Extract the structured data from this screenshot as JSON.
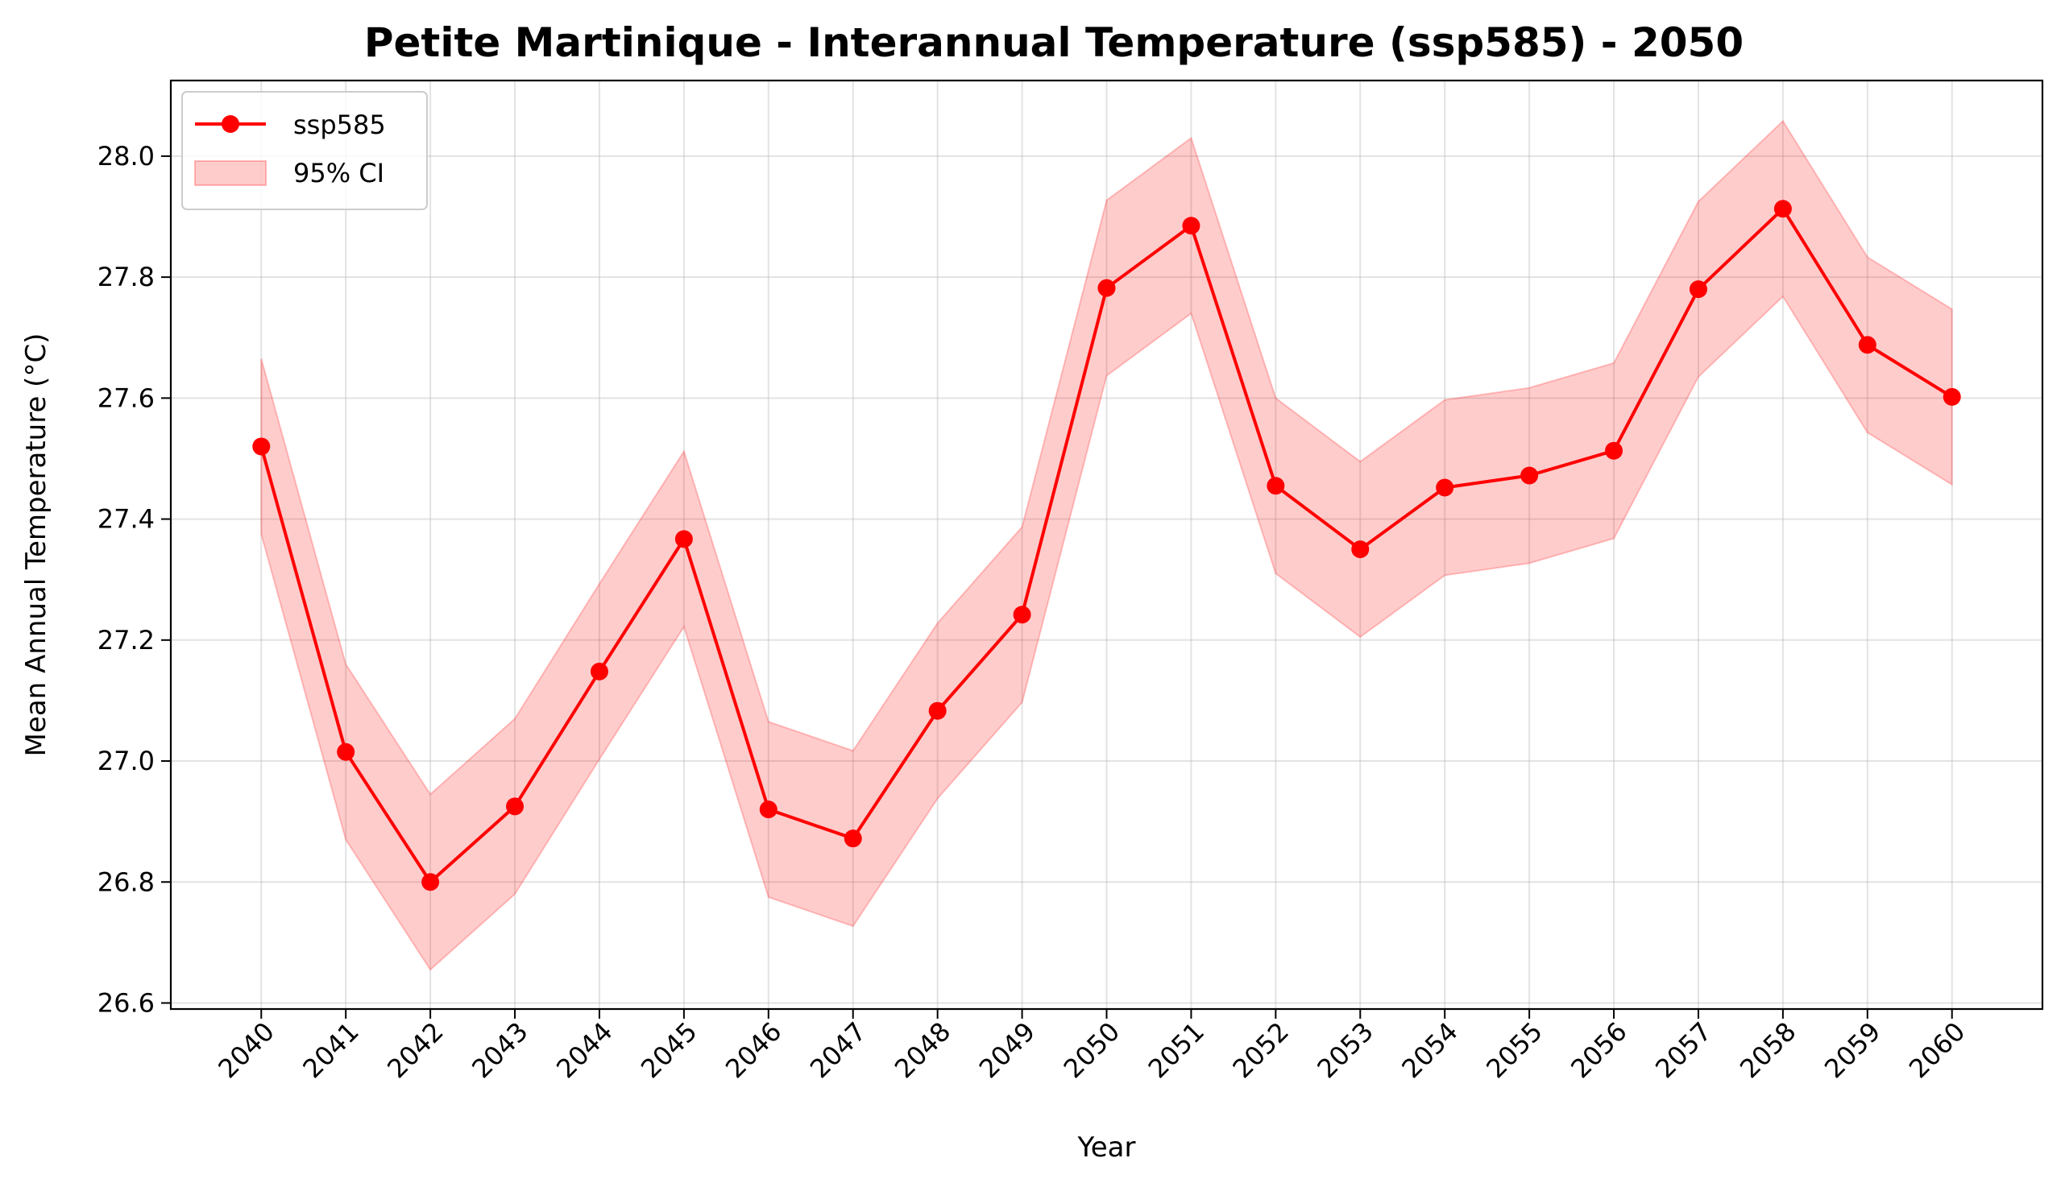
{
  "chart_data": {
    "type": "line",
    "title": "Petite Martinique - Interannual Temperature (ssp585) - 2050",
    "xlabel": "Year",
    "ylabel": "Mean Annual Temperature (°C)",
    "x": [
      2040,
      2041,
      2042,
      2043,
      2044,
      2045,
      2046,
      2047,
      2048,
      2049,
      2050,
      2051,
      2052,
      2053,
      2054,
      2055,
      2056,
      2057,
      2058,
      2059,
      2060
    ],
    "series": [
      {
        "name": "ssp585",
        "color": "#ff0000",
        "values": [
          27.52,
          27.015,
          26.8,
          26.925,
          27.148,
          27.367,
          26.92,
          26.872,
          27.083,
          27.242,
          27.782,
          27.885,
          27.455,
          27.35,
          27.452,
          27.472,
          27.513,
          27.78,
          27.913,
          27.688,
          27.602
        ]
      }
    ],
    "ci": {
      "name": "95% CI",
      "color": "#ff0000",
      "lower": [
        27.375,
        26.87,
        26.655,
        26.78,
        27.003,
        27.222,
        26.775,
        26.727,
        26.938,
        27.097,
        27.637,
        27.74,
        27.31,
        27.205,
        27.307,
        27.327,
        27.368,
        27.635,
        27.768,
        27.543,
        27.457
      ],
      "upper": [
        27.665,
        27.16,
        26.945,
        27.07,
        27.293,
        27.512,
        27.065,
        27.017,
        27.228,
        27.387,
        27.927,
        28.03,
        27.6,
        27.495,
        27.597,
        27.617,
        27.658,
        27.925,
        28.058,
        27.833,
        27.747
      ]
    },
    "y_ticks": [
      "26.6",
      "26.8",
      "27.0",
      "27.2",
      "27.4",
      "27.6",
      "27.8",
      "28.0"
    ],
    "ylim": [
      26.59,
      28.125
    ],
    "grid": true,
    "legend_position": "top-left"
  }
}
